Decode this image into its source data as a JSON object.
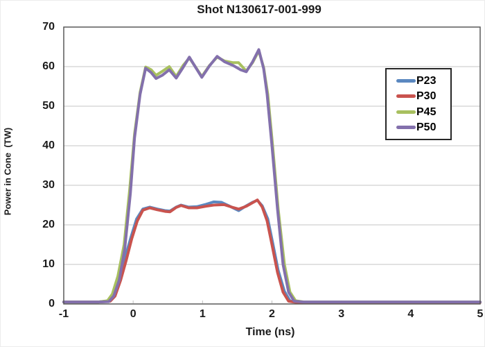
{
  "colors": {
    "grid": "#D9D9D9",
    "frame": "#595959",
    "tick_mark": "#BFBFBF",
    "text": "#1A1A1A",
    "legend_border": "#262626",
    "background": "#FFFFFF"
  },
  "chart_data": {
    "type": "line",
    "title": "Shot N130617-001-999",
    "xlabel": "Time (ns)",
    "ylabel": "Power in Cone  (TW)",
    "xlim": [
      -1,
      5
    ],
    "ylim": [
      0,
      70
    ],
    "xticks": [
      "-1",
      "0",
      "1",
      "2",
      "3",
      "4",
      "5"
    ],
    "yticks": [
      "0",
      "10",
      "20",
      "30",
      "40",
      "50",
      "60",
      "70"
    ],
    "grid": "horizontal-only",
    "legend_position": "upper-right-inside",
    "series": [
      {
        "name": "P23",
        "color": "#5B88C0",
        "points": [
          [
            -1,
            0.5
          ],
          [
            -0.5,
            0.5
          ],
          [
            -0.34,
            0.8
          ],
          [
            -0.27,
            2.2
          ],
          [
            -0.19,
            6.5
          ],
          [
            -0.11,
            12
          ],
          [
            -0.03,
            17
          ],
          [
            0.05,
            21.5
          ],
          [
            0.14,
            24
          ],
          [
            0.24,
            24.5
          ],
          [
            0.35,
            24
          ],
          [
            0.46,
            23.6
          ],
          [
            0.53,
            23.5
          ],
          [
            0.62,
            24.5
          ],
          [
            0.69,
            25
          ],
          [
            0.8,
            24.5
          ],
          [
            0.92,
            24.6
          ],
          [
            1.05,
            25.2
          ],
          [
            1.16,
            25.8
          ],
          [
            1.27,
            25.7
          ],
          [
            1.38,
            24.8
          ],
          [
            1.52,
            23.6
          ],
          [
            1.63,
            24.8
          ],
          [
            1.72,
            25.7
          ],
          [
            1.79,
            26.2
          ],
          [
            1.86,
            24.8
          ],
          [
            1.94,
            21.5
          ],
          [
            2.01,
            15.5
          ],
          [
            2.09,
            8.5
          ],
          [
            2.18,
            3.2
          ],
          [
            2.26,
            0.8
          ],
          [
            2.37,
            0.4
          ],
          [
            3,
            0.4
          ],
          [
            4,
            0.4
          ],
          [
            5,
            0.4
          ]
        ]
      },
      {
        "name": "P30",
        "color": "#C9534E",
        "points": [
          [
            -1,
            0.5
          ],
          [
            -0.5,
            0.5
          ],
          [
            -0.33,
            0.7
          ],
          [
            -0.26,
            2
          ],
          [
            -0.18,
            6
          ],
          [
            -0.1,
            11
          ],
          [
            -0.02,
            16.5
          ],
          [
            0.06,
            21
          ],
          [
            0.14,
            23.7
          ],
          [
            0.24,
            24.3
          ],
          [
            0.35,
            23.8
          ],
          [
            0.46,
            23.4
          ],
          [
            0.53,
            23.3
          ],
          [
            0.62,
            24.4
          ],
          [
            0.69,
            24.9
          ],
          [
            0.8,
            24.3
          ],
          [
            0.92,
            24.3
          ],
          [
            1.05,
            24.7
          ],
          [
            1.16,
            25
          ],
          [
            1.31,
            25.1
          ],
          [
            1.42,
            24.5
          ],
          [
            1.52,
            24
          ],
          [
            1.63,
            24.7
          ],
          [
            1.72,
            25.6
          ],
          [
            1.79,
            26.3
          ],
          [
            1.86,
            24.5
          ],
          [
            1.93,
            21
          ],
          [
            2,
            15
          ],
          [
            2.08,
            8
          ],
          [
            2.16,
            3
          ],
          [
            2.24,
            0.7
          ],
          [
            2.35,
            0.4
          ],
          [
            3,
            0.4
          ],
          [
            4,
            0.4
          ],
          [
            5,
            0.4
          ]
        ]
      },
      {
        "name": "P45",
        "color": "#A8C05F",
        "points": [
          [
            -1,
            0.5
          ],
          [
            -0.5,
            0.5
          ],
          [
            -0.37,
            0.8
          ],
          [
            -0.3,
            2.5
          ],
          [
            -0.22,
            7
          ],
          [
            -0.13,
            15
          ],
          [
            -0.05,
            29
          ],
          [
            0.02,
            43
          ],
          [
            0.1,
            53.5
          ],
          [
            0.18,
            59.9
          ],
          [
            0.26,
            59.2
          ],
          [
            0.33,
            57.8
          ],
          [
            0.42,
            58.8
          ],
          [
            0.52,
            60
          ],
          [
            0.62,
            57.5
          ],
          [
            0.72,
            60.3
          ],
          [
            0.81,
            62.2
          ],
          [
            0.9,
            59.9
          ],
          [
            0.99,
            57.5
          ],
          [
            1.1,
            60.3
          ],
          [
            1.21,
            62.4
          ],
          [
            1.32,
            61.4
          ],
          [
            1.44,
            61
          ],
          [
            1.52,
            61
          ],
          [
            1.63,
            58.9
          ],
          [
            1.72,
            61
          ],
          [
            1.81,
            64
          ],
          [
            1.88,
            59.8
          ],
          [
            1.94,
            53
          ],
          [
            2.01,
            40
          ],
          [
            2.09,
            24
          ],
          [
            2.18,
            10
          ],
          [
            2.26,
            3
          ],
          [
            2.34,
            0.8
          ],
          [
            2.46,
            0.5
          ],
          [
            3,
            0.5
          ],
          [
            4,
            0.5
          ],
          [
            5,
            0.5
          ]
        ]
      },
      {
        "name": "P50",
        "color": "#8370AC",
        "points": [
          [
            -1,
            0.5
          ],
          [
            -0.5,
            0.5
          ],
          [
            -0.35,
            0.6
          ],
          [
            -0.28,
            2
          ],
          [
            -0.2,
            6
          ],
          [
            -0.12,
            14
          ],
          [
            -0.04,
            28
          ],
          [
            0.02,
            42
          ],
          [
            0.1,
            53
          ],
          [
            0.18,
            59.6
          ],
          [
            0.26,
            58.5
          ],
          [
            0.33,
            57
          ],
          [
            0.42,
            57.8
          ],
          [
            0.52,
            59.2
          ],
          [
            0.62,
            57.1
          ],
          [
            0.72,
            59.8
          ],
          [
            0.81,
            62.4
          ],
          [
            0.9,
            59.8
          ],
          [
            0.99,
            57.3
          ],
          [
            1.1,
            60.2
          ],
          [
            1.21,
            62.6
          ],
          [
            1.32,
            61.2
          ],
          [
            1.44,
            60.3
          ],
          [
            1.55,
            59.2
          ],
          [
            1.63,
            58.7
          ],
          [
            1.72,
            61.2
          ],
          [
            1.81,
            64.3
          ],
          [
            1.88,
            59.5
          ],
          [
            1.93,
            53
          ],
          [
            2,
            40
          ],
          [
            2.08,
            24
          ],
          [
            2.16,
            10
          ],
          [
            2.24,
            3
          ],
          [
            2.32,
            0.7
          ],
          [
            2.45,
            0.5
          ],
          [
            3,
            0.5
          ],
          [
            4,
            0.5
          ],
          [
            5,
            0.5
          ]
        ]
      }
    ]
  }
}
